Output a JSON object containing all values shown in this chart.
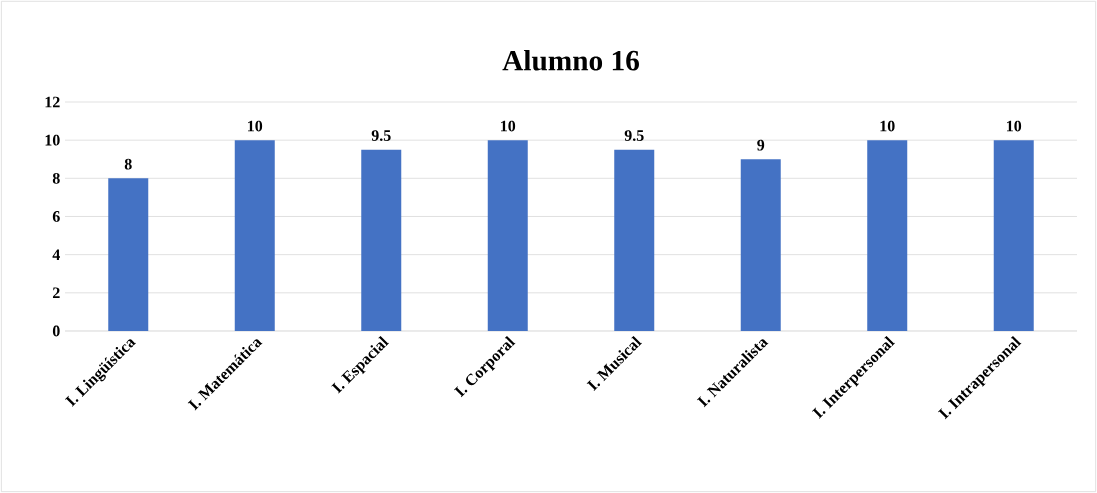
{
  "chart_data": {
    "type": "bar",
    "title": "Alumno 16",
    "categories": [
      "I. Lingüística",
      "I. Matemática",
      "I. Espacial",
      "I. Corporal",
      "I. Musical",
      "I. Naturalista",
      "I. Interpersonal",
      "I. Intrapersonal"
    ],
    "values": [
      8,
      10,
      9.5,
      10,
      9.5,
      9,
      10,
      10
    ],
    "color": "#4472c4",
    "ylim": [
      0,
      12
    ],
    "yticks": [
      0,
      2,
      4,
      6,
      8,
      10,
      12
    ],
    "grid": "y",
    "data_labels": true
  }
}
